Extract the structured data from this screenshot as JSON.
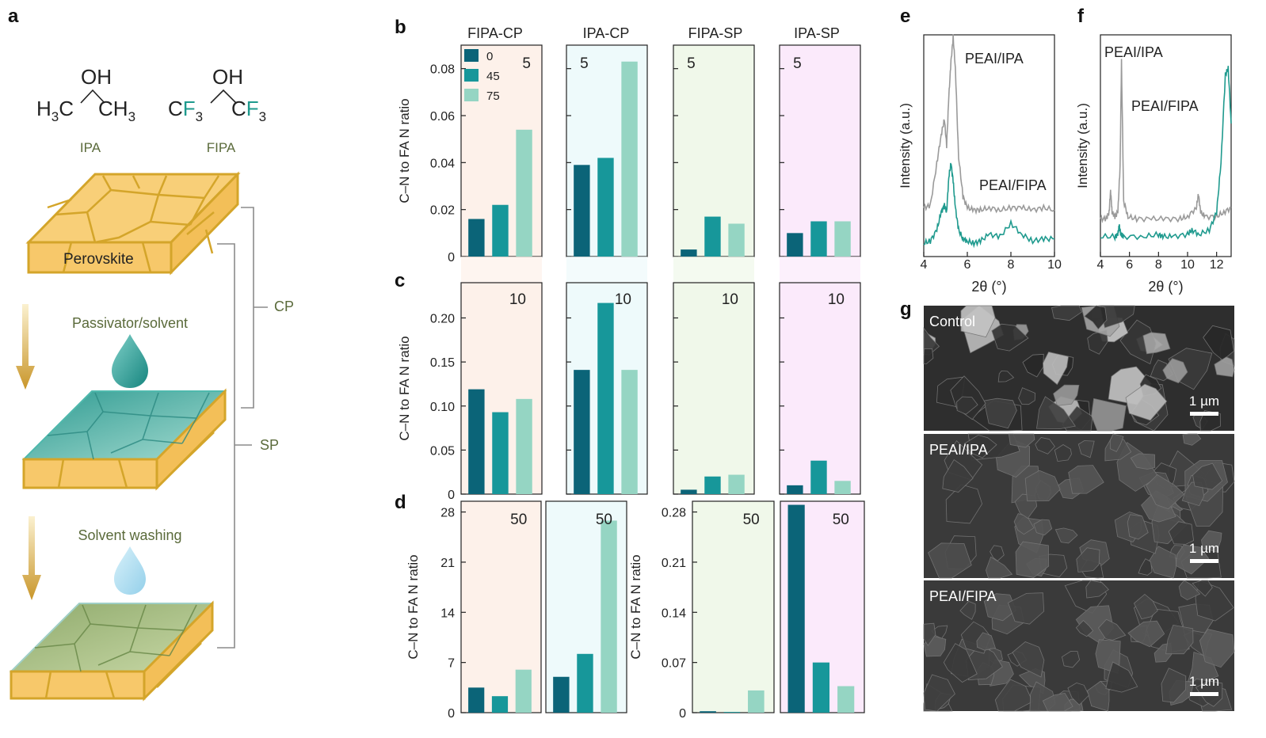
{
  "panels": {
    "a": "a",
    "b": "b",
    "c": "c",
    "d": "d",
    "e": "e",
    "f": "f",
    "g": "g"
  },
  "schematic": {
    "ipa_name": "IPA",
    "fipa_name": "FIPA",
    "perovskite_label": "Perovskite",
    "passivator_label": "Passivator/solvent",
    "washing_label": "Solvent washing",
    "cp_label": "CP",
    "sp_label": "SP"
  },
  "colors": {
    "series0": "#0b6478",
    "series45": "#17979a",
    "series75": "#95d5c3",
    "bg_fipa_cp": "#fdf1ea",
    "bg_ipa_cp": "#eefafb",
    "bg_fipa_sp": "#f0f8ea",
    "bg_ipa_sp": "#fbeafb",
    "gold": "#f7c96a",
    "gold_edge": "#d4a52a",
    "teal_film": "#3fa69c",
    "green_film": "#9fb77a",
    "trace_ipa": "#9a9a9a",
    "trace_fipa": "#1f9a8e"
  },
  "chart_data": [
    {
      "type": "bar",
      "panel": "b",
      "columns": [
        "FIPA-CP",
        "IPA-CP",
        "FIPA-SP",
        "IPA-SP"
      ],
      "ylabel": "C–N to FA N ratio",
      "ylim": [
        0,
        0.09
      ],
      "yticks": [
        "0",
        "0.02",
        "0.04",
        "0.06",
        "0.08"
      ],
      "legend": [
        "0",
        "45",
        "75"
      ],
      "depth_label": "5",
      "series": [
        {
          "name": "0",
          "values": [
            0.016,
            0.039,
            0.003,
            0.01
          ]
        },
        {
          "name": "45",
          "values": [
            0.022,
            0.042,
            0.017,
            0.015
          ]
        },
        {
          "name": "75",
          "values": [
            0.054,
            0.083,
            0.014,
            0.015
          ]
        }
      ]
    },
    {
      "type": "bar",
      "panel": "c",
      "columns": [
        "FIPA-CP",
        "IPA-CP",
        "FIPA-SP",
        "IPA-SP"
      ],
      "ylabel": "C–N to FA N ratio",
      "ylim": [
        0,
        0.24
      ],
      "yticks": [
        "0",
        "0.05",
        "0.10",
        "0.15",
        "0.20"
      ],
      "depth_label": "10",
      "series": [
        {
          "name": "0",
          "values": [
            0.119,
            0.141,
            0.005,
            0.01
          ]
        },
        {
          "name": "45",
          "values": [
            0.093,
            0.217,
            0.02,
            0.038
          ]
        },
        {
          "name": "75",
          "values": [
            0.108,
            0.141,
            0.022,
            0.015
          ]
        }
      ]
    },
    {
      "type": "bar",
      "panel": "d-cp",
      "columns": [
        "FIPA-CP",
        "IPA-CP"
      ],
      "ylabel": "C–N to FA N ratio",
      "ylim": [
        0,
        29.5
      ],
      "yticks": [
        "0",
        "7",
        "14",
        "21",
        "28"
      ],
      "depth_label": "50",
      "series": [
        {
          "name": "0",
          "values": [
            3.5,
            5.0
          ]
        },
        {
          "name": "45",
          "values": [
            2.3,
            8.2
          ]
        },
        {
          "name": "75",
          "values": [
            6.0,
            26.8
          ]
        }
      ]
    },
    {
      "type": "bar",
      "panel": "d-sp",
      "columns": [
        "FIPA-SP",
        "IPA-SP"
      ],
      "ylabel": "C–N to FA N ratio",
      "ylim": [
        0,
        0.295
      ],
      "yticks": [
        "0",
        "0.07",
        "0.14",
        "0.21",
        "0.28"
      ],
      "depth_label": "50",
      "series": [
        {
          "name": "0",
          "values": [
            0.002,
            0.29
          ]
        },
        {
          "name": "45",
          "values": [
            0.001,
            0.07
          ]
        },
        {
          "name": "75",
          "values": [
            0.031,
            0.037
          ]
        }
      ]
    },
    {
      "type": "line",
      "panel": "e",
      "xlabel": "2θ (°)",
      "ylabel": "Intensity (a.u.)",
      "xlim": [
        4,
        10
      ],
      "xticks": [
        "4",
        "6",
        "8",
        "10"
      ],
      "series": [
        {
          "name": "PEAI/IPA",
          "x": [
            4.0,
            4.3,
            4.6,
            4.8,
            4.95,
            5.05,
            5.15,
            5.25,
            5.35,
            5.45,
            5.6,
            5.8,
            6.0,
            6.3,
            6.6,
            7.0,
            7.5,
            8.0,
            8.5,
            9.0,
            9.5,
            10.0
          ],
          "y": [
            0.22,
            0.23,
            0.42,
            0.55,
            0.62,
            0.5,
            0.72,
            0.88,
            0.99,
            0.85,
            0.45,
            0.27,
            0.22,
            0.21,
            0.21,
            0.22,
            0.21,
            0.22,
            0.22,
            0.21,
            0.22,
            0.21
          ]
        },
        {
          "name": "PEAI/FIPA",
          "x": [
            4.0,
            4.3,
            4.6,
            4.8,
            4.95,
            5.05,
            5.15,
            5.25,
            5.35,
            5.45,
            5.6,
            5.8,
            6.0,
            6.3,
            6.6,
            7.0,
            7.5,
            8.0,
            8.5,
            9.0,
            9.5,
            10.0
          ],
          "y": [
            0.06,
            0.07,
            0.12,
            0.2,
            0.23,
            0.2,
            0.36,
            0.42,
            0.34,
            0.22,
            0.12,
            0.08,
            0.07,
            0.06,
            0.07,
            0.1,
            0.09,
            0.15,
            0.1,
            0.07,
            0.08,
            0.08
          ]
        }
      ]
    },
    {
      "type": "line",
      "panel": "f",
      "xlabel": "2θ (°)",
      "ylabel": "Intensity (a.u.)",
      "xlim": [
        4,
        13
      ],
      "xticks": [
        "4",
        "6",
        "8",
        "10",
        "12"
      ],
      "series": [
        {
          "name": "PEAI/IPA",
          "x": [
            4.0,
            4.4,
            4.6,
            4.7,
            4.8,
            5.0,
            5.2,
            5.35,
            5.45,
            5.6,
            5.9,
            6.5,
            7.5,
            8.5,
            9.5,
            10.0,
            10.6,
            10.75,
            10.9,
            11.2,
            12.0,
            12.5,
            13.0
          ],
          "y": [
            0.17,
            0.17,
            0.2,
            0.3,
            0.2,
            0.18,
            0.2,
            0.4,
            0.88,
            0.25,
            0.18,
            0.17,
            0.17,
            0.17,
            0.17,
            0.18,
            0.22,
            0.28,
            0.2,
            0.18,
            0.18,
            0.2,
            0.22
          ]
        },
        {
          "name": "PEAI/FIPA",
          "x": [
            4.0,
            5.0,
            5.2,
            5.3,
            5.4,
            5.6,
            7.0,
            8.0,
            8.3,
            9.0,
            10.0,
            10.3,
            10.8,
            11.5,
            12.0,
            12.3,
            12.6,
            12.8,
            13.0
          ],
          "y": [
            0.09,
            0.09,
            0.1,
            0.14,
            0.1,
            0.09,
            0.09,
            0.1,
            0.09,
            0.09,
            0.1,
            0.12,
            0.1,
            0.12,
            0.2,
            0.42,
            0.82,
            0.85,
            0.6
          ]
        }
      ]
    }
  ],
  "sem": {
    "images": [
      {
        "label": "Control",
        "scale": "1 µm"
      },
      {
        "label": "PEAI/IPA",
        "scale": "1 µm"
      },
      {
        "label": "PEAI/FIPA",
        "scale": "1 µm"
      }
    ]
  }
}
